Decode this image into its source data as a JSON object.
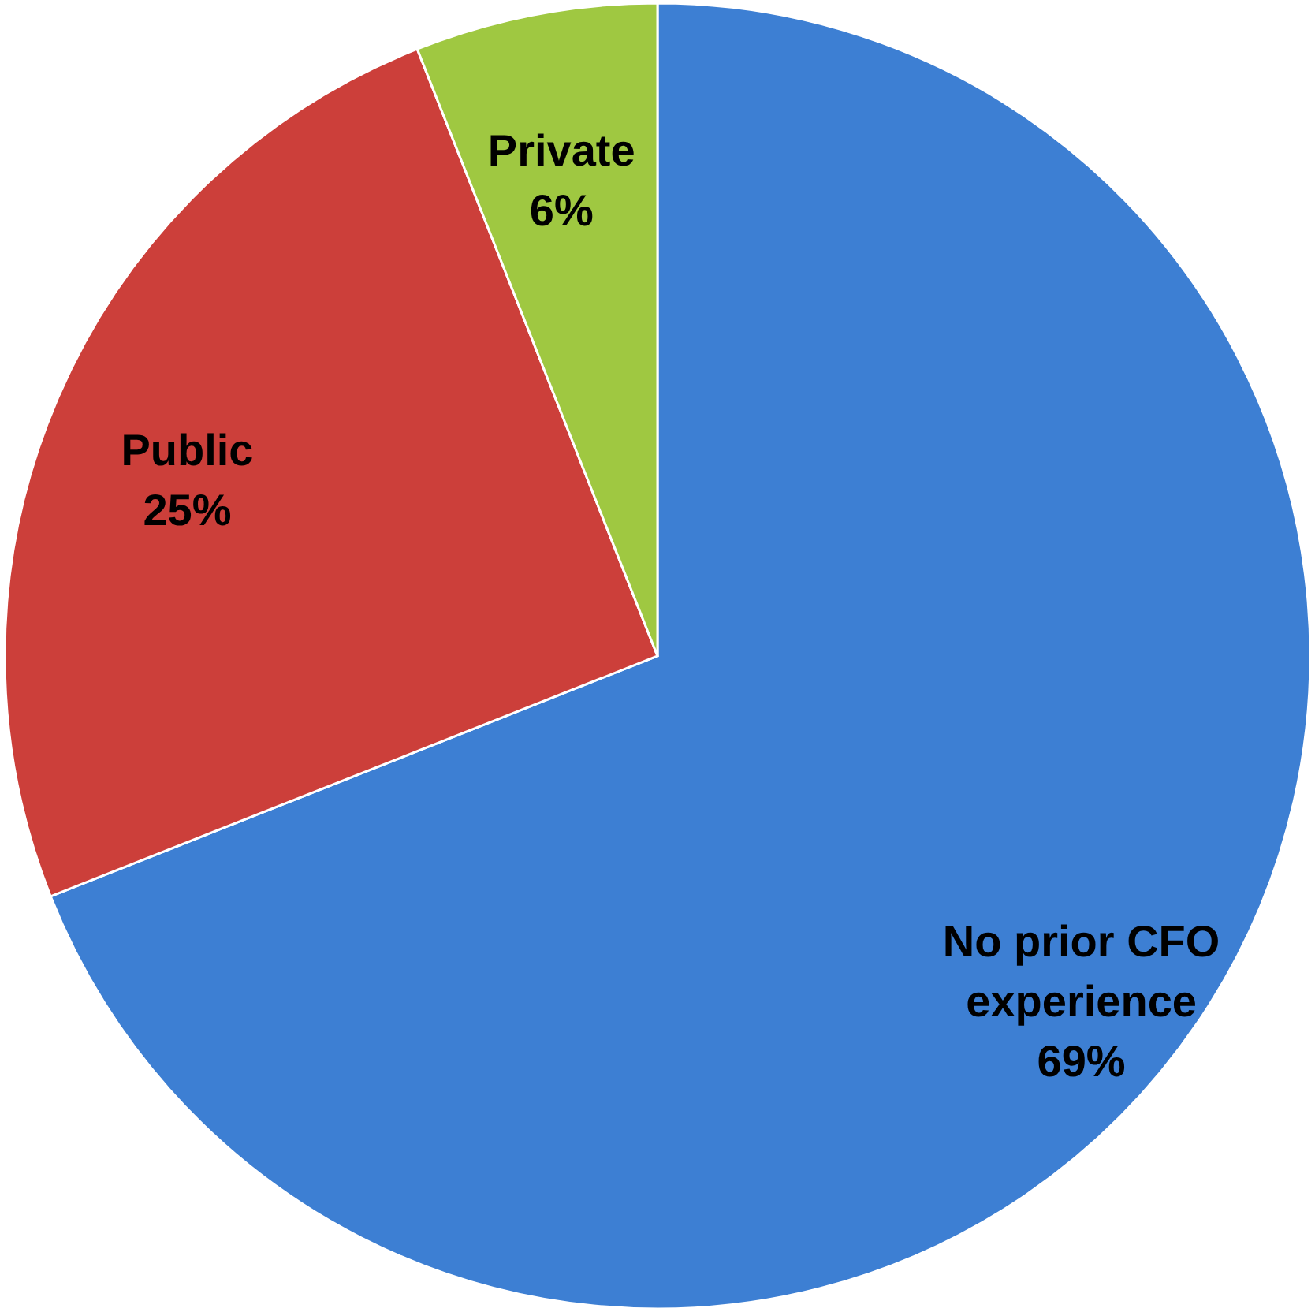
{
  "chart_data": {
    "type": "pie",
    "categories": [
      "No prior CFO experience",
      "Public",
      "Private"
    ],
    "values": [
      69,
      25,
      6
    ],
    "colors": [
      "#3d7fd3",
      "#cc3f3a",
      "#9fc841"
    ],
    "value_labels": [
      "69%",
      "25%",
      "6%"
    ]
  }
}
